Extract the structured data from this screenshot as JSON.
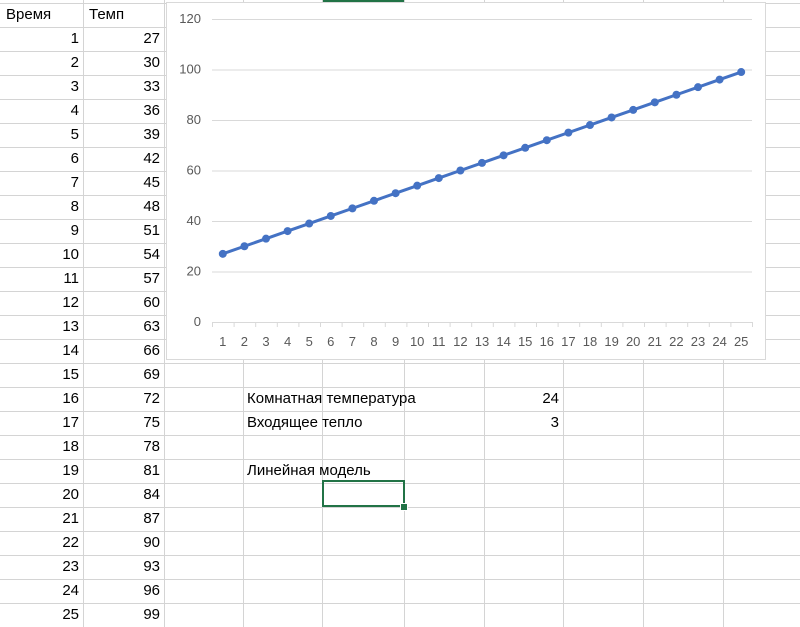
{
  "sheet": {
    "headers": {
      "col_a": "Время",
      "col_b": "Темп"
    },
    "rows": [
      {
        "time": "1",
        "temp": "27"
      },
      {
        "time": "2",
        "temp": "30"
      },
      {
        "time": "3",
        "temp": "33"
      },
      {
        "time": "4",
        "temp": "36"
      },
      {
        "time": "5",
        "temp": "39"
      },
      {
        "time": "6",
        "temp": "42"
      },
      {
        "time": "7",
        "temp": "45"
      },
      {
        "time": "8",
        "temp": "48"
      },
      {
        "time": "9",
        "temp": "51"
      },
      {
        "time": "10",
        "temp": "54"
      },
      {
        "time": "11",
        "temp": "57"
      },
      {
        "time": "12",
        "temp": "60"
      },
      {
        "time": "13",
        "temp": "63"
      },
      {
        "time": "14",
        "temp": "66"
      },
      {
        "time": "15",
        "temp": "69"
      },
      {
        "time": "16",
        "temp": "72"
      },
      {
        "time": "17",
        "temp": "75"
      },
      {
        "time": "18",
        "temp": "78"
      },
      {
        "time": "19",
        "temp": "81"
      },
      {
        "time": "20",
        "temp": "84"
      },
      {
        "time": "21",
        "temp": "87"
      },
      {
        "time": "22",
        "temp": "90"
      },
      {
        "time": "23",
        "temp": "93"
      },
      {
        "time": "24",
        "temp": "96"
      },
      {
        "time": "25",
        "temp": "99"
      }
    ],
    "params": [
      {
        "label": "Комнатная температура",
        "value": "24"
      },
      {
        "label": "Входящее тепло",
        "value": "3"
      }
    ],
    "model_label": "Линейная модель"
  },
  "chart_data": {
    "type": "line",
    "categories": [
      "1",
      "2",
      "3",
      "4",
      "5",
      "6",
      "7",
      "8",
      "9",
      "10",
      "11",
      "12",
      "13",
      "14",
      "15",
      "16",
      "17",
      "18",
      "19",
      "20",
      "21",
      "22",
      "23",
      "24",
      "25"
    ],
    "series": [
      {
        "values": [
          27,
          30,
          33,
          36,
          39,
          42,
          45,
          48,
          51,
          54,
          57,
          60,
          63,
          66,
          69,
          72,
          75,
          78,
          81,
          84,
          87,
          90,
          93,
          96,
          99
        ]
      }
    ],
    "ylim": [
      0,
      120
    ],
    "yticks": [
      "0",
      "20",
      "40",
      "60",
      "80",
      "100",
      "120"
    ],
    "grid": true,
    "markers": true,
    "legend": "none",
    "title": "",
    "xlabel": "",
    "ylabel": "",
    "colors": {
      "series": "#4472c4",
      "grid": "#d9d9d9"
    }
  },
  "colors": {
    "selection": "#217346",
    "gridline": "#d4d4d4"
  }
}
